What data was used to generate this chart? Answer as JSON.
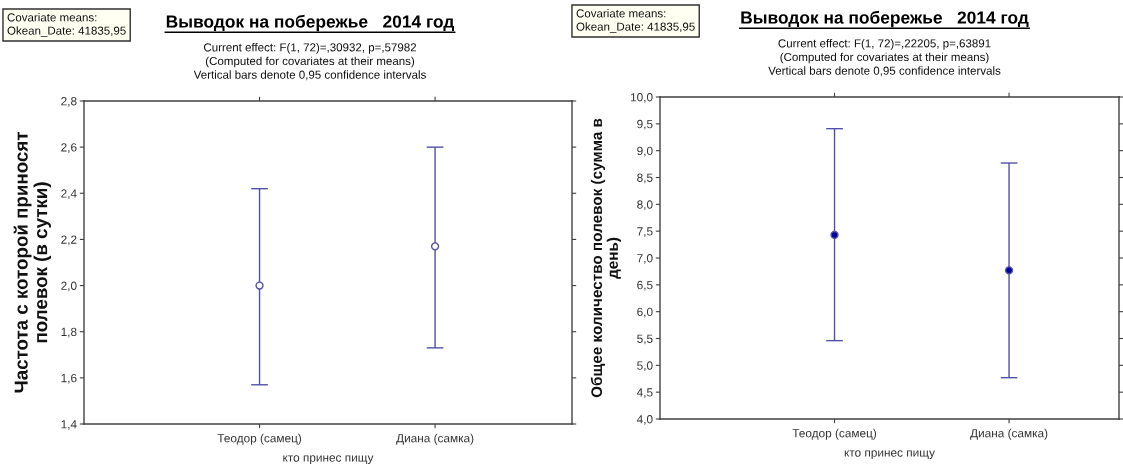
{
  "chart_data": [
    {
      "type": "scatter",
      "title": "Выводок на побережье   2014 год",
      "subtitle": "Current effect: F(1, 72)=,30932, p=,57982\n(Computed for covariates at their means)\nVertical bars denote 0,95 confidence intervals",
      "xlabel": "кто принес пищу",
      "ylabel": "Частота с которой приносят\nполевок (в сутки)",
      "annotations": [
        "Covariate means:\nOkean_Date: 41835,95"
      ],
      "categories": [
        "Теодор (самец)",
        "Диана (самка)"
      ],
      "values": [
        2.0,
        2.17
      ],
      "errors": [
        [
          1.57,
          2.42
        ],
        [
          1.73,
          2.6
        ]
      ],
      "color": "#5050a8",
      "colors": [
        "#ffffff",
        "#ffffff"
      ],
      "marker": "circle",
      "ylim": [
        1.4,
        2.8
      ],
      "yticks": [
        {
          "value": 1.4,
          "label": "1,4"
        },
        {
          "value": 1.6,
          "label": "1,6"
        },
        {
          "value": 1.8,
          "label": "1,8"
        },
        {
          "value": 2.0,
          "label": "2,0"
        },
        {
          "value": 2.2,
          "label": "2,2"
        },
        {
          "value": 2.4,
          "label": "2,4"
        },
        {
          "value": 2.6,
          "label": "2,6"
        },
        {
          "value": 2.8,
          "label": "2,8"
        }
      ]
    },
    {
      "type": "scatter",
      "title": "Выводок на побережье   2014 год",
      "subtitle": "Current effect: F(1, 72)=,22205, p=,63891\n(Computed for covariates at their means)\nVertical bars denote 0,95 confidence intervals",
      "xlabel": "кто принес пищу",
      "ylabel": "Общее количество полевок (сумма в\nдень)",
      "annotations": [
        "Covariate means:\nOkean_Date: 41835,95"
      ],
      "categories": [
        "Теодор (самец)",
        "Диана (самка)"
      ],
      "values": [
        7.43,
        6.77
      ],
      "errors": [
        [
          5.46,
          9.41
        ],
        [
          4.77,
          8.77
        ]
      ],
      "color": "#5050a8",
      "colors": [
        "#0000a0",
        "#0000a0"
      ],
      "marker": "circle",
      "ylim": [
        4.0,
        10.0
      ],
      "yticks": [
        {
          "value": 4.0,
          "label": "4,0"
        },
        {
          "value": 4.5,
          "label": "4,5"
        },
        {
          "value": 5.0,
          "label": "5,0"
        },
        {
          "value": 5.5,
          "label": "5,5"
        },
        {
          "value": 6.0,
          "label": "6,0"
        },
        {
          "value": 6.5,
          "label": "6,5"
        },
        {
          "value": 7.0,
          "label": "7,0"
        },
        {
          "value": 7.5,
          "label": "7,5"
        },
        {
          "value": 8.0,
          "label": "8,0"
        },
        {
          "value": 8.5,
          "label": "8,5"
        },
        {
          "value": 9.0,
          "label": "9,0"
        },
        {
          "value": 9.5,
          "label": "9,5"
        },
        {
          "value": 10.0,
          "label": "10,0"
        }
      ]
    }
  ]
}
